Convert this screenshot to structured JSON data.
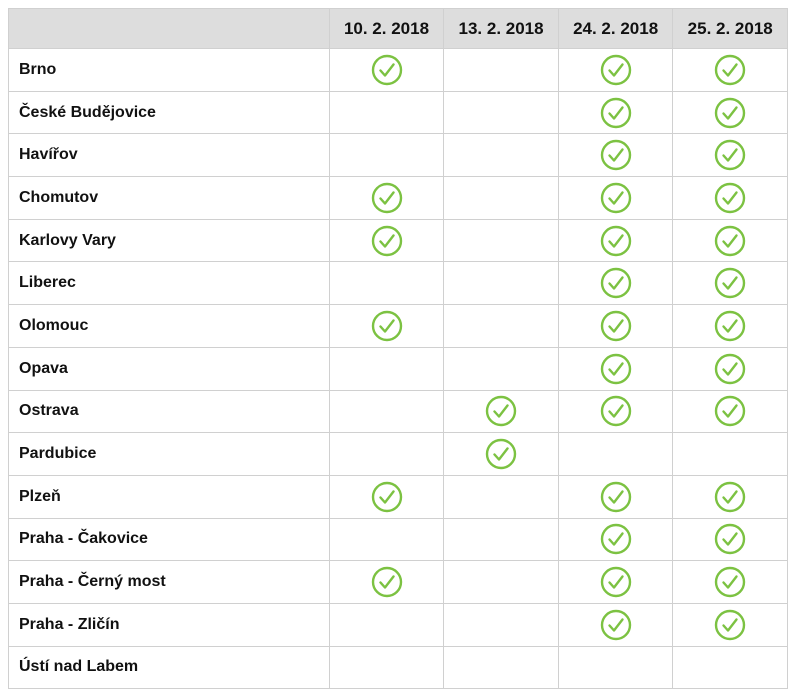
{
  "colors": {
    "check": "#7cc242",
    "header_bg": "#dddddd",
    "border": "#d0d0d0"
  },
  "icon": "check-circle-icon",
  "columns": [
    "10. 2. 2018",
    "13. 2. 2018",
    "24. 2. 2018",
    "25. 2. 2018"
  ],
  "rows": [
    {
      "city": "Brno",
      "checks": [
        true,
        false,
        true,
        true
      ]
    },
    {
      "city": "České Budějovice",
      "checks": [
        false,
        false,
        true,
        true
      ]
    },
    {
      "city": "Havířov",
      "checks": [
        false,
        false,
        true,
        true
      ]
    },
    {
      "city": "Chomutov",
      "checks": [
        true,
        false,
        true,
        true
      ]
    },
    {
      "city": "Karlovy Vary",
      "checks": [
        true,
        false,
        true,
        true
      ]
    },
    {
      "city": "Liberec",
      "checks": [
        false,
        false,
        true,
        true
      ]
    },
    {
      "city": "Olomouc",
      "checks": [
        true,
        false,
        true,
        true
      ]
    },
    {
      "city": "Opava",
      "checks": [
        false,
        false,
        true,
        true
      ]
    },
    {
      "city": "Ostrava",
      "checks": [
        false,
        true,
        true,
        true
      ]
    },
    {
      "city": "Pardubice",
      "checks": [
        false,
        true,
        false,
        false
      ]
    },
    {
      "city": "Plzeň",
      "checks": [
        true,
        false,
        true,
        true
      ]
    },
    {
      "city": "Praha - Čakovice",
      "checks": [
        false,
        false,
        true,
        true
      ]
    },
    {
      "city": "Praha - Černý most",
      "checks": [
        true,
        false,
        true,
        true
      ]
    },
    {
      "city": "Praha - Zličín",
      "checks": [
        false,
        false,
        true,
        true
      ]
    },
    {
      "city": "Ústí nad Labem",
      "checks": [
        false,
        false,
        false,
        false
      ]
    }
  ]
}
